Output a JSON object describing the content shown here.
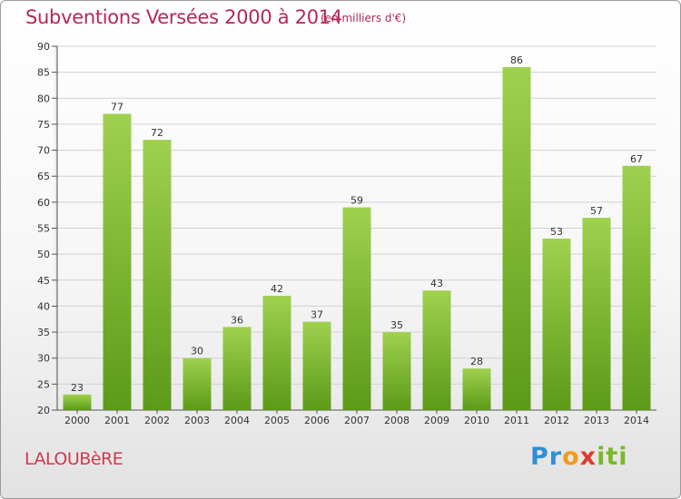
{
  "header": {
    "title": "Subventions Versées 2000 à 2014",
    "subtitle": "(en milliers d'€)"
  },
  "footer": {
    "commune": "LALOUBèRE",
    "logo": [
      "Pr",
      "o",
      "x",
      "iti"
    ]
  },
  "colors": {
    "title": "#b5275a",
    "bar_light": "#9fd14e",
    "bar_dark": "#5c9a18",
    "grid": "#d2d2d2"
  },
  "chart_data": {
    "type": "bar",
    "categories": [
      "2000",
      "2001",
      "2002",
      "2003",
      "2004",
      "2005",
      "2006",
      "2007",
      "2008",
      "2009",
      "2010",
      "2011",
      "2012",
      "2013",
      "2014"
    ],
    "values": [
      23,
      77,
      72,
      30,
      36,
      42,
      37,
      59,
      35,
      43,
      28,
      86,
      53,
      57,
      67
    ],
    "title": "Subventions Versées 2000 à 2014",
    "subtitle": "(en milliers d'€)",
    "xlabel": "",
    "ylabel": "",
    "ylim": [
      20,
      90
    ],
    "yticks": [
      20,
      25,
      30,
      35,
      40,
      45,
      50,
      55,
      60,
      65,
      70,
      75,
      80,
      85,
      90
    ],
    "grid": true,
    "data_labels": true
  }
}
